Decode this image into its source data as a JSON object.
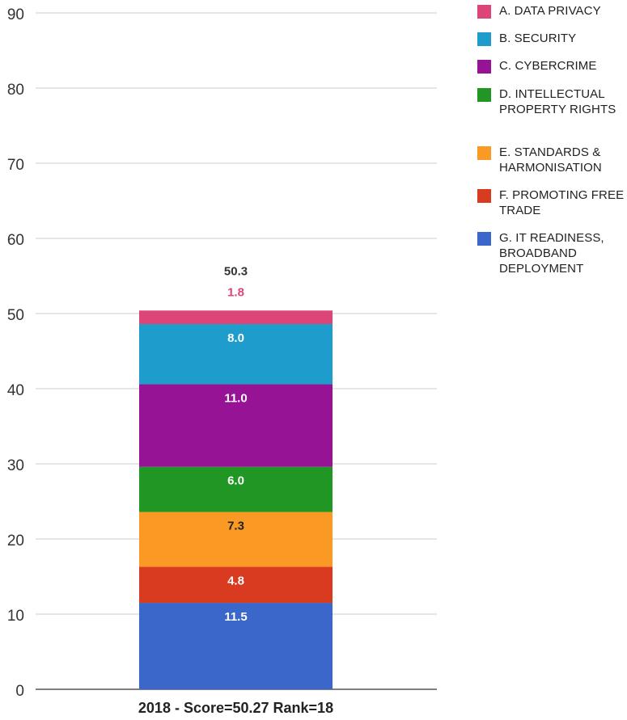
{
  "chart_data": {
    "type": "bar",
    "stacked": true,
    "categories": [
      "2018 - Score=50.27 Rank=18"
    ],
    "ylim": [
      0,
      90
    ],
    "yticks": [
      "0",
      "10",
      "20",
      "30",
      "40",
      "50",
      "60",
      "70",
      "80",
      "90"
    ],
    "grid": true,
    "legend_position": "right",
    "total_label": "50.3",
    "series": [
      {
        "name": "G. IT READINESS, BROADBAND DEPLOYMENT",
        "values": [
          11.5
        ],
        "label": "11.5",
        "color": "#3A67C9",
        "label_color": "#ffffff"
      },
      {
        "name": "F. PROMOTING FREE TRADE",
        "values": [
          4.8
        ],
        "label": "4.8",
        "color": "#D83B20",
        "label_color": "#ffffff"
      },
      {
        "name": "E. STANDARDS & HARMONISATION",
        "values": [
          7.3
        ],
        "label": "7.3",
        "color": "#FA9A25",
        "label_color": "#222222"
      },
      {
        "name": "D. INTELLECTUAL PROPERTY RIGHTS",
        "values": [
          6.0
        ],
        "label": "6.0",
        "color": "#209624",
        "label_color": "#ffffff"
      },
      {
        "name": "C. CYBERCRIME",
        "values": [
          11.0
        ],
        "label": "11.0",
        "color": "#961396",
        "label_color": "#ffffff"
      },
      {
        "name": "B. SECURITY",
        "values": [
          8.0
        ],
        "label": "8.0",
        "color": "#1E9CCB",
        "label_color": "#ffffff"
      },
      {
        "name": "A. DATA PRIVACY",
        "values": [
          1.8
        ],
        "label": "1.8",
        "color": "#DD4477",
        "label_color": "#DD4477"
      }
    ]
  },
  "legend": {
    "items": [
      {
        "label": "A. DATA PRIVACY",
        "color": "#DD4477"
      },
      {
        "label": "B. SECURITY",
        "color": "#1E9CCB"
      },
      {
        "label": "C. CYBERCRIME",
        "color": "#961396"
      },
      {
        "label": "D. INTELLECTUAL PROPERTY RIGHTS",
        "color": "#209624"
      },
      {
        "label": "E. STANDARDS & HARMONISATION",
        "color": "#FA9A25"
      },
      {
        "label": "F. PROMOTING FREE TRADE",
        "color": "#D83B20"
      },
      {
        "label": "G. IT READINESS, BROADBAND DEPLOYMENT",
        "color": "#3A67C9"
      }
    ]
  }
}
